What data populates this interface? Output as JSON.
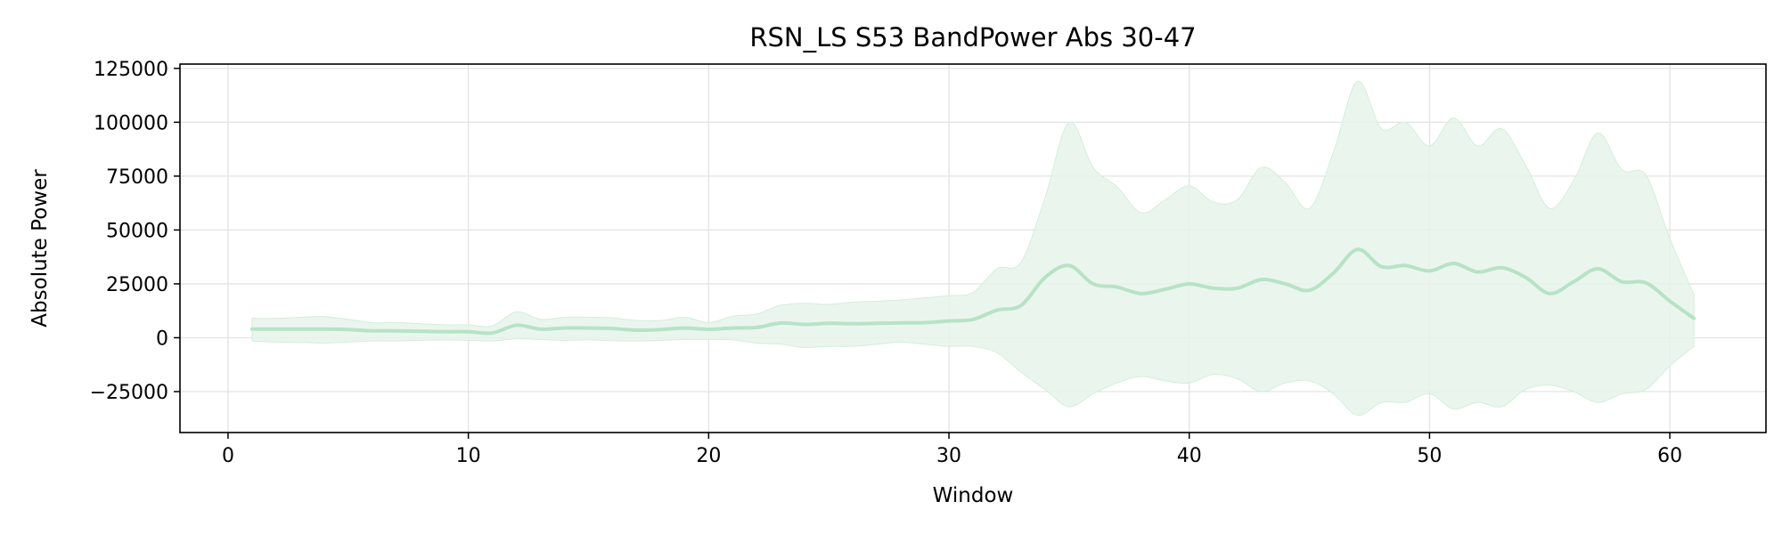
{
  "chart_data": {
    "type": "line",
    "title": "RSN_LS S53 BandPower Abs 30-47",
    "xlabel": "Window",
    "ylabel": "Absolute Power",
    "xlim": [
      -2,
      64
    ],
    "ylim": [
      -44000,
      127000
    ],
    "x_ticks": [
      0,
      10,
      20,
      30,
      40,
      50,
      60
    ],
    "y_ticks": [
      -25000,
      0,
      25000,
      50000,
      75000,
      100000,
      125000
    ],
    "grid": true,
    "colors": {
      "line": "#b7e2c6",
      "band": "#e6f4ea"
    },
    "series": [
      {
        "x": [
          1,
          2,
          3,
          4,
          5,
          6,
          7,
          8,
          9,
          10,
          11,
          12,
          13,
          14,
          15,
          16,
          17,
          18,
          19,
          20,
          21,
          22,
          23,
          24,
          25,
          26,
          27,
          28,
          29,
          30,
          31,
          32,
          33,
          34,
          35,
          36,
          37,
          38,
          39,
          40,
          41,
          42,
          43,
          44,
          45,
          46,
          47,
          48,
          49,
          50,
          51,
          52,
          53,
          54,
          55,
          56,
          57,
          58,
          59,
          60,
          61
        ],
        "values": [
          4000,
          4000,
          4000,
          4000,
          3800,
          3200,
          3200,
          3000,
          2800,
          2800,
          2200,
          5800,
          4000,
          4500,
          4500,
          4300,
          3500,
          3800,
          4500,
          3900,
          4500,
          4800,
          6800,
          6200,
          6700,
          6500,
          6700,
          6900,
          7000,
          7800,
          8500,
          12800,
          15000,
          28000,
          33500,
          25000,
          23500,
          20500,
          22500,
          25000,
          23000,
          23000,
          27000,
          25000,
          22000,
          30000,
          41000,
          33000,
          33500,
          31000,
          34500,
          30500,
          32500,
          28000,
          20500,
          26000,
          32000,
          26000,
          25500,
          17000,
          9000
        ],
        "upper": [
          9000,
          9000,
          9500,
          9800,
          8500,
          7000,
          7000,
          6500,
          6000,
          6000,
          5500,
          12000,
          8500,
          9500,
          9500,
          9200,
          8000,
          8000,
          9500,
          7000,
          10000,
          11000,
          15000,
          16000,
          15500,
          16500,
          17000,
          17500,
          18500,
          19500,
          21000,
          32000,
          35000,
          65000,
          100000,
          79000,
          70000,
          58000,
          64000,
          70500,
          63000,
          64000,
          79000,
          72000,
          60000,
          86000,
          119000,
          97000,
          100000,
          89000,
          102000,
          89000,
          97000,
          80000,
          60000,
          73000,
          95000,
          78000,
          75500,
          46000,
          20000
        ],
        "lower": [
          -1500,
          -2000,
          -2200,
          -2500,
          -2000,
          -1500,
          -1500,
          -1200,
          -1000,
          -1200,
          -1500,
          -500,
          -800,
          -1200,
          -1000,
          -1400,
          -1500,
          -1200,
          -800,
          -800,
          -1000,
          -2500,
          -3000,
          -4500,
          -4000,
          -4000,
          -3000,
          -2000,
          -3000,
          -4000,
          -4000,
          -7000,
          -16000,
          -24000,
          -32000,
          -26000,
          -21000,
          -18000,
          -20000,
          -21000,
          -17000,
          -19000,
          -25000,
          -21000,
          -20000,
          -26000,
          -36000,
          -30000,
          -30000,
          -26000,
          -33000,
          -30000,
          -32000,
          -24000,
          -22000,
          -25000,
          -30000,
          -26000,
          -24000,
          -13000,
          -4000
        ]
      }
    ]
  }
}
